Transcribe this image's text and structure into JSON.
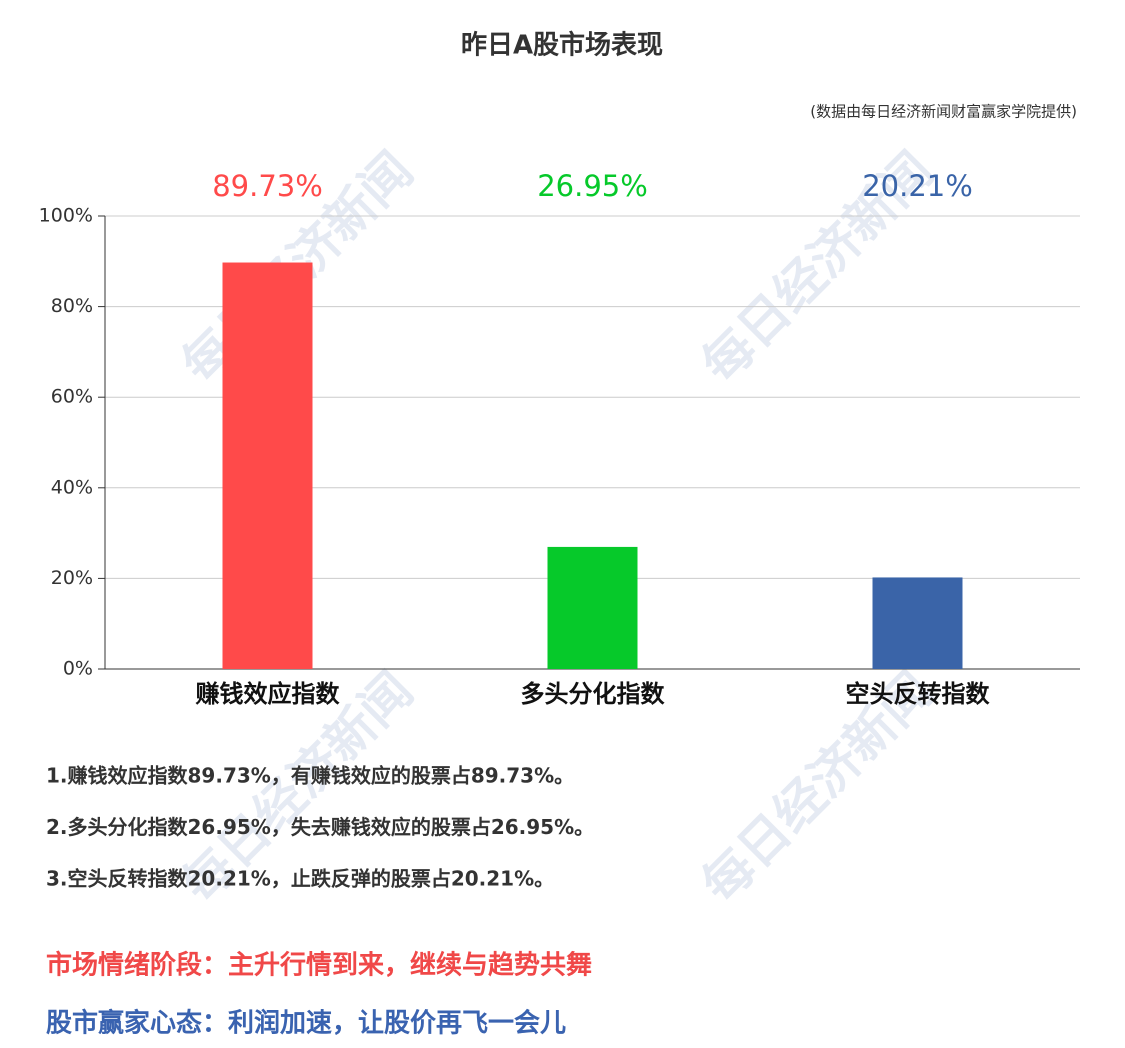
{
  "chart_data": {
    "type": "bar",
    "title": "昨日A股市场表现",
    "subtitle": "(数据由每日经济新闻财富赢家学院提供)",
    "categories": [
      "赚钱效应指数",
      "多头分化指数",
      "空头反转指数"
    ],
    "values": [
      89.73,
      26.95,
      20.21
    ],
    "value_labels": [
      "89.73%",
      "26.95%",
      "20.21%"
    ],
    "colors": [
      "#ff4a4a",
      "#06c92a",
      "#3a64a8"
    ],
    "ylim": [
      0,
      100
    ],
    "yticks": [
      {
        "value": 0,
        "label": "0%"
      },
      {
        "value": 20,
        "label": "20%"
      },
      {
        "value": 40,
        "label": "40%"
      },
      {
        "value": 60,
        "label": "60%"
      },
      {
        "value": 80,
        "label": "80%"
      },
      {
        "value": 100,
        "label": "100%"
      }
    ],
    "grid": true
  },
  "watermark": "每日经济新闻",
  "notes": [
    "1.赚钱效应指数89.73%，有赚钱效应的股票占89.73%。",
    "2.多头分化指数26.95%，失去赚钱效应的股票占26.95%。",
    "3.空头反转指数20.21%，止跌反弹的股票占20.21%。"
  ],
  "conclusions": [
    {
      "text": "市场情绪阶段：主升行情到来，继续与趋势共舞",
      "color": "#f04848"
    },
    {
      "text": "股市赢家心态：利润加速，让股价再飞一会儿",
      "color": "#3a63b0"
    }
  ]
}
